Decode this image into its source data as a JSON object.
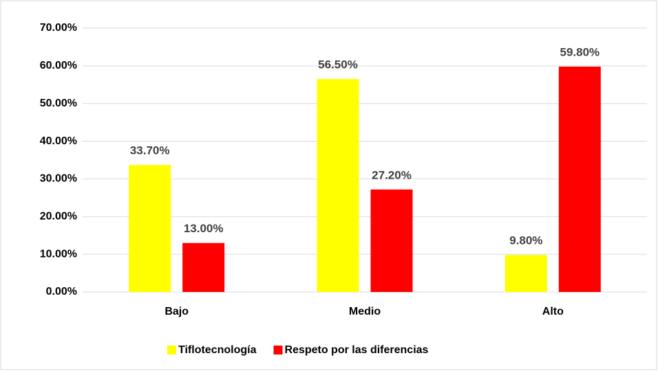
{
  "chart_data": {
    "type": "bar",
    "categories": [
      "Bajo",
      "Medio",
      "Alto"
    ],
    "series": [
      {
        "name": "Tiflotecnología",
        "color": "#ffff00",
        "values": [
          33.7,
          56.5,
          9.8
        ],
        "value_labels": [
          "33.70%",
          "56.50%",
          "9.80%"
        ]
      },
      {
        "name": "Respeto por las diferencias",
        "color": "#ff0000",
        "values": [
          13.0,
          27.2,
          59.8
        ],
        "value_labels": [
          "13.00%",
          "27.20%",
          "59.80%"
        ]
      }
    ],
    "ylim": [
      0,
      70
    ],
    "yticks": [
      {
        "value": 0,
        "label": "0.00%"
      },
      {
        "value": 10,
        "label": "10.00%"
      },
      {
        "value": 20,
        "label": "20.00%"
      },
      {
        "value": 30,
        "label": "30.00%"
      },
      {
        "value": 40,
        "label": "40.00%"
      },
      {
        "value": 50,
        "label": "50.00%"
      },
      {
        "value": 60,
        "label": "60.00%"
      },
      {
        "value": 70,
        "label": "70.00%"
      }
    ],
    "grid": true,
    "legend": "bottom"
  }
}
